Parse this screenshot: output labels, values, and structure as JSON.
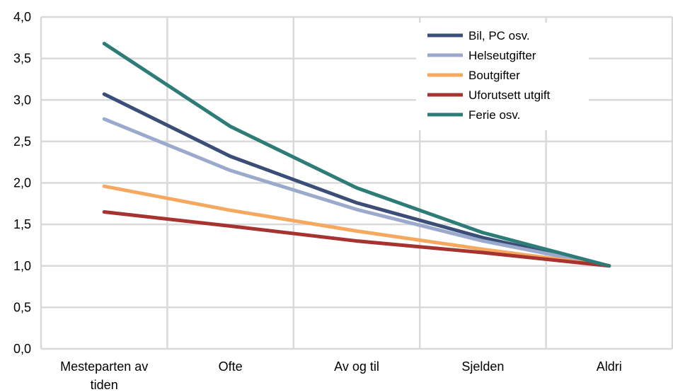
{
  "chart_data": {
    "type": "line",
    "title": "",
    "xlabel": "",
    "ylabel": "",
    "categories": [
      "Mesteparten av tiden",
      "Ofte",
      "Av og til",
      "Sjelden",
      "Aldri"
    ],
    "ylim": [
      0,
      4.0
    ],
    "yticks": [
      "0,0",
      "0,5",
      "1,0",
      "1,5",
      "2,0",
      "2,5",
      "3,0",
      "3,5",
      "4,0"
    ],
    "grid": true,
    "legend_position": "top-right",
    "series": [
      {
        "name": "Bil, PC  osv.",
        "color": "#3b4e78",
        "values": [
          3.07,
          2.32,
          1.76,
          1.34,
          1.0
        ]
      },
      {
        "name": "Helseutgifter",
        "color": "#9aa9cc",
        "values": [
          2.77,
          2.15,
          1.68,
          1.3,
          1.0
        ]
      },
      {
        "name": "Boutgifter",
        "color": "#f5a960",
        "values": [
          1.96,
          1.67,
          1.42,
          1.2,
          1.0
        ]
      },
      {
        "name": "Uforutsett utgift",
        "color": "#a73331",
        "values": [
          1.65,
          1.48,
          1.3,
          1.16,
          1.0
        ]
      },
      {
        "name": "Ferie osv.",
        "color": "#2e7c78",
        "values": [
          3.68,
          2.68,
          1.94,
          1.4,
          1.0
        ]
      }
    ]
  }
}
